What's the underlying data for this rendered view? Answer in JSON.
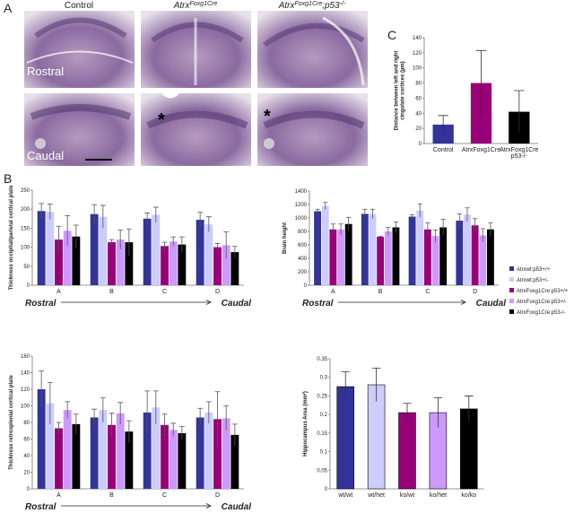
{
  "figure": {
    "panel_labels": [
      "A",
      "B",
      "C"
    ],
    "column_headers": [
      [
        {
          "text": "Control"
        }
      ],
      [
        {
          "text": "Atrx"
        },
        {
          "text": "Foxg1Cre",
          "sup": true
        }
      ],
      [
        {
          "text": "Atrx"
        },
        {
          "text": "Foxg1Cre",
          "sup": true
        },
        {
          "text": ";p53"
        },
        {
          "text": "-/-",
          "sup": true
        }
      ]
    ],
    "row_labels": [
      "Rostral",
      "Caudal"
    ],
    "asterisks": [
      "*",
      "*"
    ]
  },
  "chart_data": [
    {
      "type": "bar",
      "y_label": "Distance between left and right cingulate cortices (µm)",
      "categories": [
        "Control",
        "AtrxFoxg1Cre",
        "AtrxFoxg1Cre p53-/-"
      ],
      "values": [
        25,
        80,
        42
      ],
      "errors": [
        12,
        43,
        28
      ],
      "colors": [
        "#333399",
        "#990077",
        "#000000"
      ],
      "ylim": [
        0,
        140
      ],
      "yticks": [
        0,
        20,
        40,
        60,
        80,
        100,
        120,
        140
      ]
    },
    {
      "type": "bar",
      "y_label": "Thickness occipital/parietal cortical plate",
      "categories": [
        "A",
        "B",
        "C",
        "D"
      ],
      "x_start": "Rostral",
      "x_end": "Caudal",
      "series": [
        {
          "color": "#333399",
          "values": [
            195,
            187,
            175,
            172
          ],
          "errors": [
            20,
            25,
            15,
            20
          ]
        },
        {
          "color": "#ccccff",
          "values": [
            193,
            180,
            185,
            160
          ],
          "errors": [
            20,
            30,
            20,
            20
          ]
        },
        {
          "color": "#990077",
          "values": [
            120,
            113,
            103,
            100
          ],
          "errors": [
            35,
            7,
            10,
            10
          ]
        },
        {
          "color": "#cc99ff",
          "values": [
            143,
            120,
            115,
            105
          ],
          "errors": [
            40,
            25,
            12,
            35
          ]
        },
        {
          "color": "#000000",
          "values": [
            128,
            113,
            107,
            87
          ],
          "errors": [
            30,
            35,
            20,
            15
          ]
        }
      ],
      "ylim": [
        0,
        250
      ],
      "yticks": [
        0,
        50,
        100,
        150,
        200,
        250
      ]
    },
    {
      "type": "bar",
      "y_label": "Brain height",
      "categories": [
        "A",
        "B",
        "C",
        "D"
      ],
      "x_start": "Rostral",
      "x_end": "Caudal",
      "legend": "right",
      "series": [
        {
          "name": "Atrxwt:p53+/+",
          "color": "#333399",
          "values": [
            1100,
            1060,
            1020,
            960
          ],
          "errors": [
            30,
            70,
            30,
            100
          ]
        },
        {
          "name": "Atrxwt:p53+/-",
          "color": "#ccccff",
          "values": [
            1180,
            1060,
            1110,
            1050
          ],
          "errors": [
            50,
            70,
            100,
            100
          ]
        },
        {
          "name": "AtrxFoxg1Cre:p53+/+",
          "color": "#990077",
          "values": [
            830,
            720,
            830,
            890
          ],
          "errors": [
            80,
            10,
            100,
            100
          ]
        },
        {
          "name": "AtrxFoxg1Cre:p53+/-",
          "color": "#cc99ff",
          "values": [
            830,
            800,
            730,
            740
          ],
          "errors": [
            80,
            60,
            90,
            100
          ]
        },
        {
          "name": "AtrxFoxg1Cre:p53-/-",
          "color": "#000000",
          "values": [
            910,
            860,
            860,
            830
          ],
          "errors": [
            100,
            80,
            120,
            100
          ]
        }
      ],
      "ylim": [
        0,
        1400
      ],
      "yticks": [
        0,
        200,
        400,
        600,
        800,
        1000,
        1200,
        1400
      ]
    },
    {
      "type": "bar",
      "y_label": "Thickness retrosplenial cortical plate",
      "categories": [
        "A",
        "B",
        "C",
        "D"
      ],
      "x_start": "Rostral",
      "x_end": "Caudal",
      "series": [
        {
          "color": "#333399",
          "values": [
            120,
            86,
            92,
            86
          ],
          "errors": [
            22,
            10,
            26,
            11
          ]
        },
        {
          "color": "#ccccff",
          "values": [
            103,
            95,
            98,
            92
          ],
          "errors": [
            25,
            15,
            20,
            13
          ]
        },
        {
          "color": "#990077",
          "values": [
            73,
            77,
            77,
            84
          ],
          "errors": [
            7,
            14,
            13,
            33
          ]
        },
        {
          "color": "#cc99ff",
          "values": [
            95,
            91,
            71,
            85
          ],
          "errors": [
            10,
            13,
            8,
            15
          ]
        },
        {
          "color": "#000000",
          "values": [
            78,
            69,
            67,
            65
          ],
          "errors": [
            12,
            13,
            8,
            13
          ]
        }
      ],
      "ylim": [
        0,
        160
      ],
      "yticks": [
        0,
        20,
        40,
        60,
        80,
        100,
        120,
        140,
        160
      ]
    },
    {
      "type": "bar",
      "y_label": "Hippocampus Area (mm²)",
      "categories": [
        "wt/wt",
        "wt/het",
        "ko/wt",
        "ko/het",
        "ko/ko"
      ],
      "values": [
        0.275,
        0.28,
        0.205,
        0.205,
        0.215
      ],
      "errors": [
        0.04,
        0.045,
        0.025,
        0.04,
        0.035
      ],
      "colors": [
        "#333399",
        "#ccccff",
        "#990077",
        "#cc99ff",
        "#000000"
      ],
      "bar_outline": "#000000",
      "ylim": [
        0,
        0.35
      ],
      "yticks": [
        0,
        0.05,
        0.1,
        0.15,
        0.2,
        0.25,
        0.3,
        0.35
      ]
    }
  ]
}
